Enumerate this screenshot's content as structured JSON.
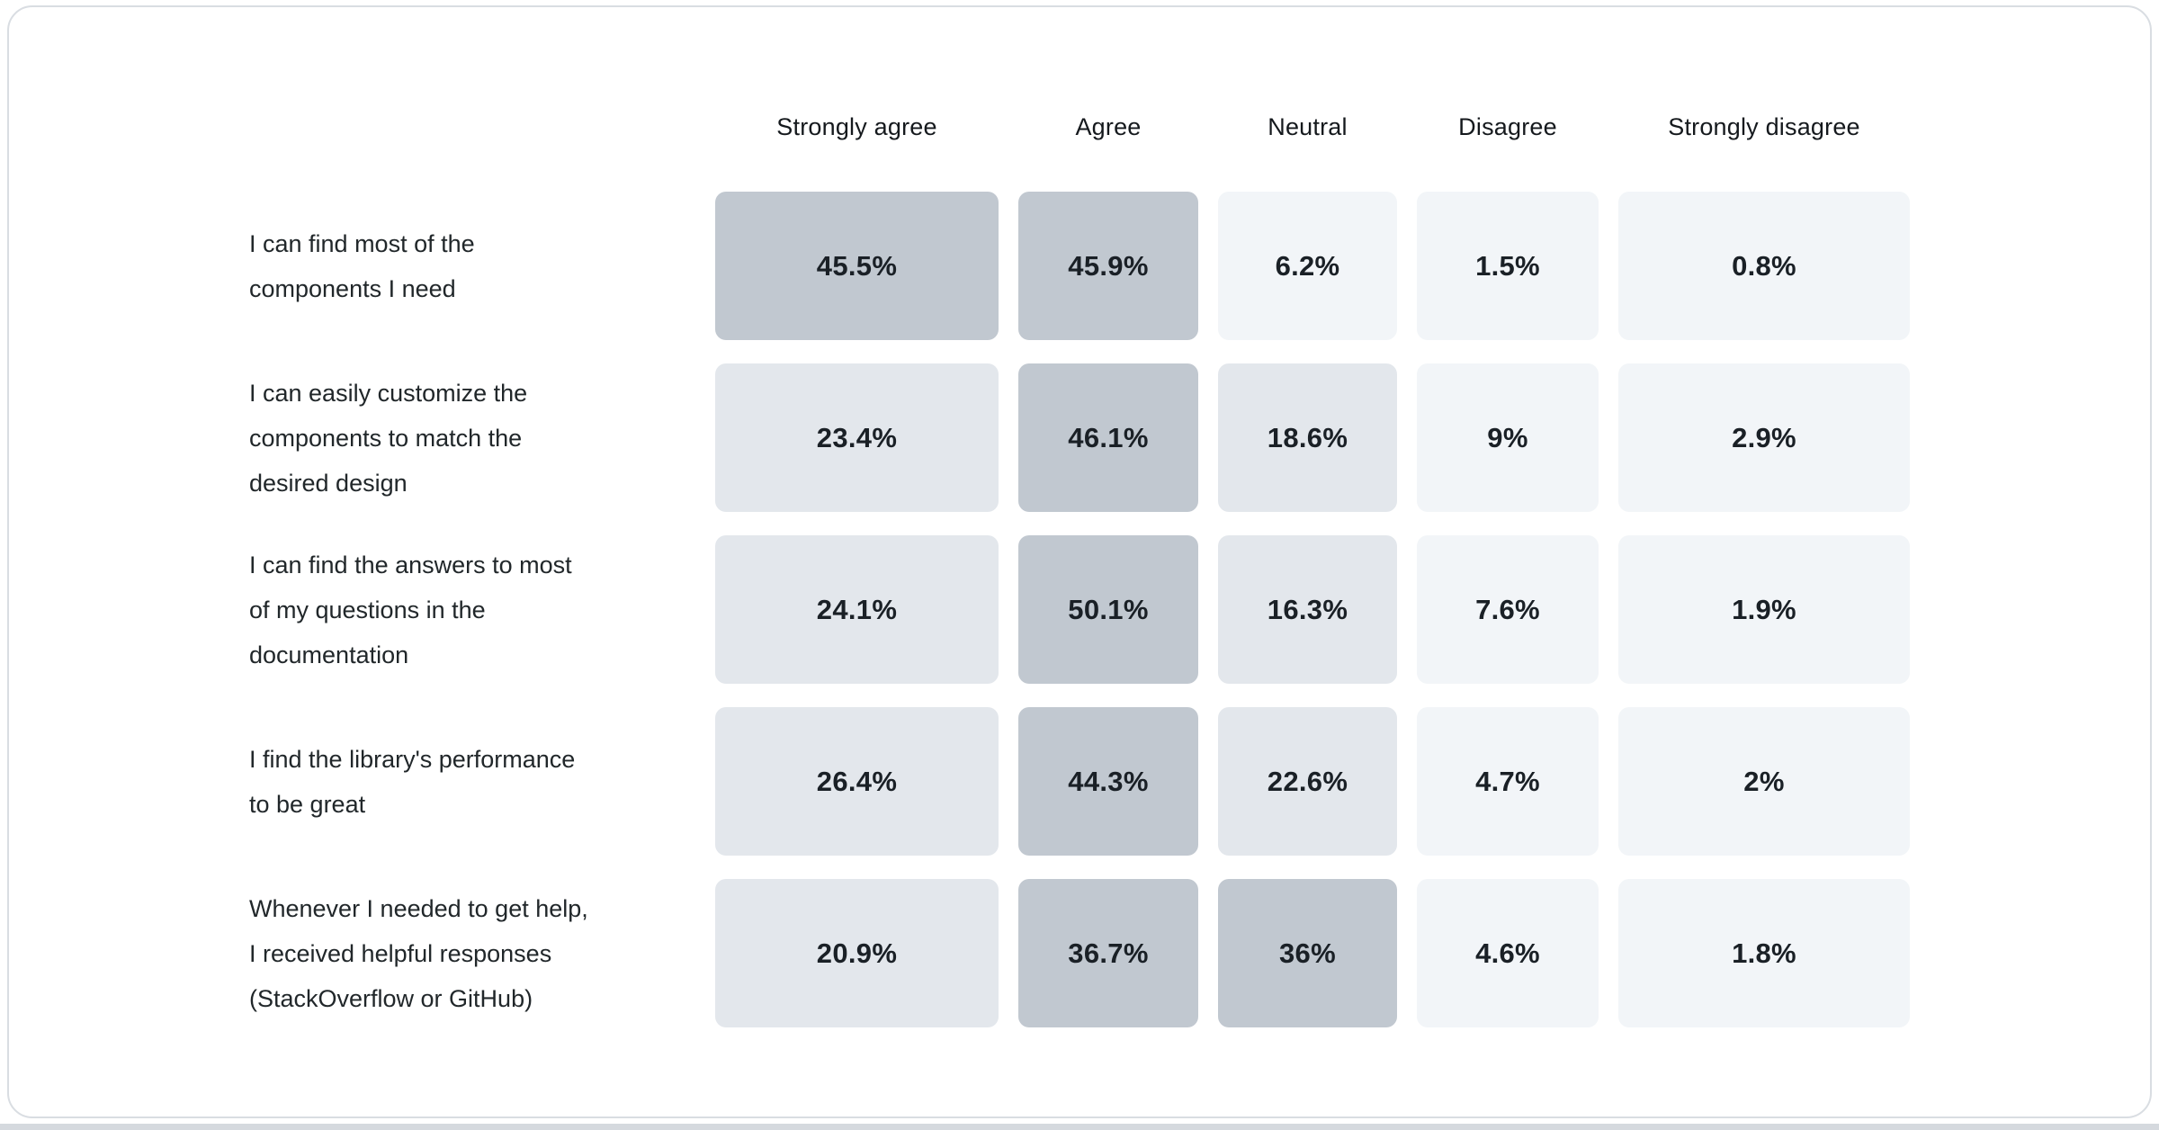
{
  "page": {
    "card_background": "#ffffff",
    "card_border_color": "#d9dde2",
    "bottom_strip_color": "#d5d9de"
  },
  "chart_data": {
    "type": "heatmap",
    "title": "",
    "categories": [
      "Strongly agree",
      "Agree",
      "Neutral",
      "Disagree",
      "Strongly disagree"
    ],
    "rows": [
      {
        "label": "I can find most of the\ncomponents I need",
        "values": [
          45.5,
          45.9,
          6.2,
          1.5,
          0.8
        ],
        "display_values": [
          "45.5%",
          "45.9%",
          "6.2%",
          "1.5%",
          "0.8%"
        ]
      },
      {
        "label": "I can easily customize the\ncomponents to match the\ndesired design",
        "values": [
          23.4,
          46.1,
          18.6,
          9,
          2.9
        ],
        "display_values": [
          "23.4%",
          "46.1%",
          "18.6%",
          "9%",
          "2.9%"
        ]
      },
      {
        "label": "I can find the answers to most\nof my questions in the\ndocumentation",
        "values": [
          24.1,
          50.1,
          16.3,
          7.6,
          1.9
        ],
        "display_values": [
          "24.1%",
          "50.1%",
          "16.3%",
          "7.6%",
          "1.9%"
        ]
      },
      {
        "label": "I find the library's performance\nto be great",
        "values": [
          26.4,
          44.3,
          22.6,
          4.7,
          2
        ],
        "display_values": [
          "26.4%",
          "44.3%",
          "22.6%",
          "4.7%",
          "2%"
        ]
      },
      {
        "label": "Whenever I needed to get help,\nI received helpful responses\n(StackOverflow or GitHub)",
        "values": [
          20.9,
          36.7,
          36,
          4.6,
          1.8
        ],
        "display_values": [
          "20.9%",
          "36.7%",
          "36%",
          "4.6%",
          "1.8%"
        ]
      }
    ],
    "value_format": "percent",
    "legend": "none",
    "grid": "off",
    "palette": {
      "buckets": [
        {
          "min": 30,
          "color": "#c1c8d0"
        },
        {
          "min": 10,
          "color": "#e3e7ec"
        },
        {
          "min": 0,
          "color": "#f2f5f8"
        }
      ],
      "value_text_color": "#1a2026",
      "label_text_color": "#21272a",
      "header_text_color": "#15191d"
    }
  }
}
